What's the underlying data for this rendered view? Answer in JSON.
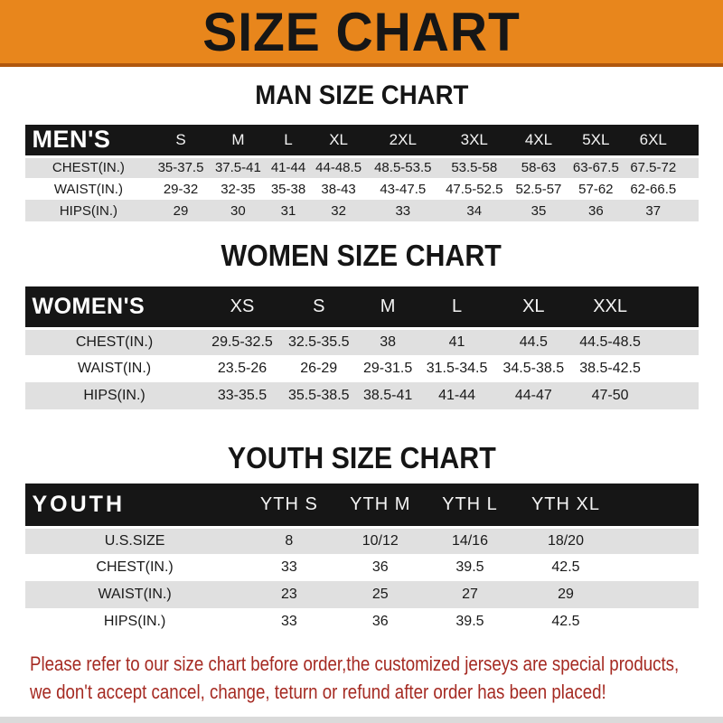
{
  "banner": {
    "title": "SIZE CHART"
  },
  "colors": {
    "banner_bg": "#E8861C",
    "banner_border": "#B0570E",
    "header_bar_bg": "#161616",
    "row_alt_bg": "#E0E0E0",
    "note_text": "#A52A22"
  },
  "sections": [
    {
      "heading": "MAN SIZE CHART",
      "table": {
        "corner_label": "MEN'S",
        "columns": [
          "S",
          "M",
          "L",
          "XL",
          "2XL",
          "3XL",
          "4XL",
          "5XL",
          "6XL"
        ],
        "rows": [
          {
            "label": "CHEST(IN.)",
            "values": [
              "35-37.5",
              "37.5-41",
              "41-44",
              "44-48.5",
              "48.5-53.5",
              "53.5-58",
              "58-63",
              "63-67.5",
              "67.5-72"
            ]
          },
          {
            "label": "WAIST(IN.)",
            "values": [
              "29-32",
              "32-35",
              "35-38",
              "38-43",
              "43-47.5",
              "47.5-52.5",
              "52.5-57",
              "57-62",
              "62-66.5"
            ]
          },
          {
            "label": "HIPS(IN.)",
            "values": [
              "29",
              "30",
              "31",
              "32",
              "33",
              "34",
              "35",
              "36",
              "37"
            ]
          }
        ]
      }
    },
    {
      "heading": "WOMEN SIZE CHART",
      "table": {
        "corner_label": "WOMEN'S",
        "columns": [
          "XS",
          "S",
          "M",
          "L",
          "XL",
          "XXL"
        ],
        "rows": [
          {
            "label": "CHEST(IN.)",
            "values": [
              "29.5-32.5",
              "32.5-35.5",
              "38",
              "41",
              "44.5",
              "44.5-48.5"
            ]
          },
          {
            "label": "WAIST(IN.)",
            "values": [
              "23.5-26",
              "26-29",
              "29-31.5",
              "31.5-34.5",
              "34.5-38.5",
              "38.5-42.5"
            ]
          },
          {
            "label": "HIPS(IN.)",
            "values": [
              "33-35.5",
              "35.5-38.5",
              "38.5-41",
              "41-44",
              "44-47",
              "47-50"
            ]
          }
        ]
      }
    },
    {
      "heading": "YOUTH SIZE CHART",
      "table": {
        "corner_label": "YOUTH",
        "columns": [
          "YTH S",
          "YTH M",
          "YTH L",
          "YTH XL"
        ],
        "rows": [
          {
            "label": "U.S.SIZE",
            "values": [
              "8",
              "10/12",
              "14/16",
              "18/20"
            ]
          },
          {
            "label": "CHEST(IN.)",
            "values": [
              "33",
              "36",
              "39.5",
              "42.5"
            ]
          },
          {
            "label": "WAIST(IN.)",
            "values": [
              "23",
              "25",
              "27",
              "29"
            ]
          },
          {
            "label": "HIPS(IN.)",
            "values": [
              "33",
              "36",
              "39.5",
              "42.5"
            ]
          }
        ]
      }
    }
  ],
  "footer": {
    "line1": "Please refer to our size chart before order,the customized jerseys are special products,",
    "line2": "we don't accept cancel, change, teturn or refund after order has been placed!"
  }
}
